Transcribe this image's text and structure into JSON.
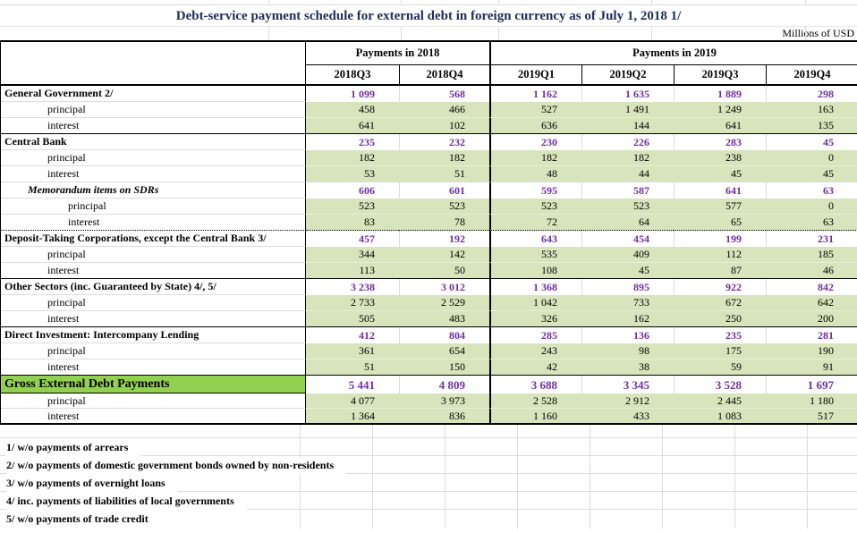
{
  "title": "Debt-service payment schedule for external debt in foreign currency as of July 1, 2018 1/",
  "units_note": "Millions of USD",
  "table": {
    "column_groups": [
      {
        "label": "Payments in 2018",
        "quarters": [
          "2018Q3",
          "2018Q4"
        ]
      },
      {
        "label": "Payments in 2019",
        "quarters": [
          "2019Q1",
          "2019Q2",
          "2019Q3",
          "2019Q4"
        ]
      }
    ],
    "sub_row_labels": [
      "principal",
      "interest"
    ],
    "sections": [
      {
        "kind": "standard",
        "label": "General Government 2/",
        "total": [
          "1 099",
          "568",
          "1 162",
          "1 635",
          "1 889",
          "298"
        ],
        "principal": [
          "458",
          "466",
          "527",
          "1 491",
          "1 249",
          "163"
        ],
        "interest": [
          "641",
          "102",
          "636",
          "144",
          "641",
          "135"
        ]
      },
      {
        "kind": "standard",
        "label": "Central Bank",
        "total": [
          "235",
          "232",
          "230",
          "226",
          "283",
          "45"
        ],
        "principal": [
          "182",
          "182",
          "182",
          "182",
          "238",
          "0"
        ],
        "interest": [
          "53",
          "51",
          "48",
          "44",
          "45",
          "45"
        ]
      },
      {
        "kind": "memo",
        "label": "Memorandum items on SDRs",
        "total": [
          "606",
          "601",
          "595",
          "587",
          "641",
          "63"
        ],
        "principal": [
          "523",
          "523",
          "523",
          "523",
          "577",
          "0"
        ],
        "interest": [
          "83",
          "78",
          "72",
          "64",
          "65",
          "63"
        ]
      },
      {
        "kind": "standard",
        "label": "Deposit-Taking Corporations, except the Central Bank 3/",
        "total": [
          "457",
          "192",
          "643",
          "454",
          "199",
          "231"
        ],
        "principal": [
          "344",
          "142",
          "535",
          "409",
          "112",
          "185"
        ],
        "interest": [
          "113",
          "50",
          "108",
          "45",
          "87",
          "46"
        ]
      },
      {
        "kind": "standard",
        "label": "Other Sectors (inc. Guaranteed by State) 4/, 5/",
        "total": [
          "3 238",
          "3 012",
          "1 368",
          "895",
          "922",
          "842"
        ],
        "principal": [
          "2 733",
          "2 529",
          "1 042",
          "733",
          "672",
          "642"
        ],
        "interest": [
          "505",
          "483",
          "326",
          "162",
          "250",
          "200"
        ]
      },
      {
        "kind": "standard",
        "label": "Direct Investment: Intercompany Lending",
        "total": [
          "412",
          "804",
          "285",
          "136",
          "235",
          "281"
        ],
        "principal": [
          "361",
          "654",
          "243",
          "98",
          "175",
          "190"
        ],
        "interest": [
          "51",
          "150",
          "42",
          "38",
          "59",
          "91"
        ]
      },
      {
        "kind": "grand",
        "label": "Gross External Debt Payments",
        "total": [
          "5 441",
          "4 809",
          "3 688",
          "3 345",
          "3 528",
          "1 697"
        ],
        "principal": [
          "4 077",
          "3 973",
          "2 528",
          "2 912",
          "2 445",
          "1 180"
        ],
        "interest": [
          "1 364",
          "836",
          "1 160",
          "433",
          "1 083",
          "517"
        ]
      }
    ]
  },
  "footnotes": [
    "1/ w/o payments of arrears",
    "2/ w/o payments of domestic government bonds owned by non-residents",
    "3/ w/o payments of overnight loans",
    "4/ inc. payments of liabilities of local governments",
    "5/ w/o payments of trade credit"
  ],
  "colors": {
    "accent_purple": "#7030A0",
    "subrow_green": "#D7E4BC",
    "grand_total_green": "#92D050",
    "title_navy": "#1F2D58"
  },
  "chart_data": {
    "type": "table",
    "title": "Debt-service payment schedule for external debt in foreign currency as of July 1, 2018 1/",
    "units": "Millions of USD",
    "columns": [
      "2018Q3",
      "2018Q4",
      "2019Q1",
      "2019Q2",
      "2019Q3",
      "2019Q4"
    ],
    "rows": [
      {
        "label": "General Government 2/",
        "level": "section",
        "values": [
          1099,
          568,
          1162,
          1635,
          1889,
          298
        ]
      },
      {
        "label": "principal",
        "section": "General Government 2/",
        "values": [
          458,
          466,
          527,
          1491,
          1249,
          163
        ]
      },
      {
        "label": "interest",
        "section": "General Government 2/",
        "values": [
          641,
          102,
          636,
          144,
          641,
          135
        ]
      },
      {
        "label": "Central Bank",
        "level": "section",
        "values": [
          235,
          232,
          230,
          226,
          283,
          45
        ]
      },
      {
        "label": "principal",
        "section": "Central Bank",
        "values": [
          182,
          182,
          182,
          182,
          238,
          0
        ]
      },
      {
        "label": "interest",
        "section": "Central Bank",
        "values": [
          53,
          51,
          48,
          44,
          45,
          45
        ]
      },
      {
        "label": "Memorandum items on SDRs",
        "level": "memorandum",
        "values": [
          606,
          601,
          595,
          587,
          641,
          63
        ]
      },
      {
        "label": "principal",
        "section": "Memorandum items on SDRs",
        "values": [
          523,
          523,
          523,
          523,
          577,
          0
        ]
      },
      {
        "label": "interest",
        "section": "Memorandum items on SDRs",
        "values": [
          83,
          78,
          72,
          64,
          65,
          63
        ]
      },
      {
        "label": "Deposit-Taking Corporations, except the Central Bank 3/",
        "level": "section",
        "values": [
          457,
          192,
          643,
          454,
          199,
          231
        ]
      },
      {
        "label": "principal",
        "section": "Deposit-Taking Corporations, except the Central Bank 3/",
        "values": [
          344,
          142,
          535,
          409,
          112,
          185
        ]
      },
      {
        "label": "interest",
        "section": "Deposit-Taking Corporations, except the Central Bank 3/",
        "values": [
          113,
          50,
          108,
          45,
          87,
          46
        ]
      },
      {
        "label": "Other Sectors (inc. Guaranteed by State) 4/, 5/",
        "level": "section",
        "values": [
          3238,
          3012,
          1368,
          895,
          922,
          842
        ]
      },
      {
        "label": "principal",
        "section": "Other Sectors (inc. Guaranteed by State) 4/, 5/",
        "values": [
          2733,
          2529,
          1042,
          733,
          672,
          642
        ]
      },
      {
        "label": "interest",
        "section": "Other Sectors (inc. Guaranteed by State) 4/, 5/",
        "values": [
          505,
          483,
          326,
          162,
          250,
          200
        ]
      },
      {
        "label": "Direct Investment: Intercompany Lending",
        "level": "section",
        "values": [
          412,
          804,
          285,
          136,
          235,
          281
        ]
      },
      {
        "label": "principal",
        "section": "Direct Investment: Intercompany Lending",
        "values": [
          361,
          654,
          243,
          98,
          175,
          190
        ]
      },
      {
        "label": "interest",
        "section": "Direct Investment: Intercompany Lending",
        "values": [
          51,
          150,
          42,
          38,
          59,
          91
        ]
      },
      {
        "label": "Gross External Debt Payments",
        "level": "grand-total",
        "values": [
          5441,
          4809,
          3688,
          3345,
          3528,
          1697
        ]
      },
      {
        "label": "principal",
        "section": "Gross External Debt Payments",
        "values": [
          4077,
          3973,
          2528,
          2912,
          2445,
          1180
        ]
      },
      {
        "label": "interest",
        "section": "Gross External Debt Payments",
        "values": [
          1364,
          836,
          1160,
          433,
          1083,
          517
        ]
      }
    ]
  }
}
